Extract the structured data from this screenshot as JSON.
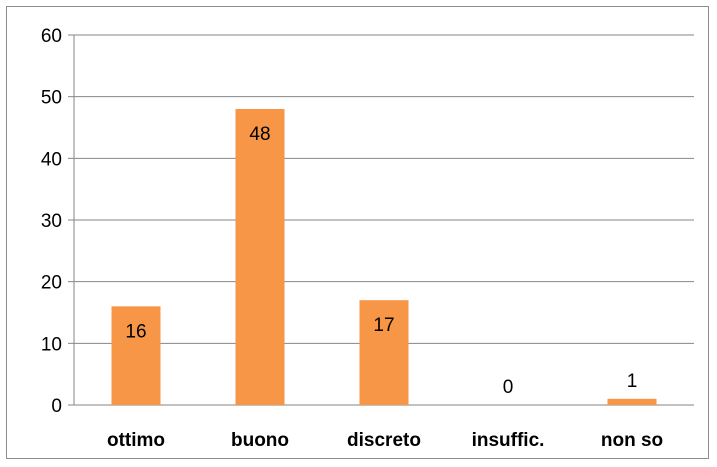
{
  "chart_data": {
    "type": "bar",
    "title": "",
    "xlabel": "",
    "ylabel": "",
    "categories": [
      "ottimo",
      "buono",
      "discreto",
      "insuffic.",
      "non so"
    ],
    "values": [
      16,
      48,
      17,
      0,
      1
    ],
    "data_labels": [
      "16",
      "48",
      "17",
      "0",
      "1"
    ],
    "y_ticks": [
      "0",
      "10",
      "20",
      "30",
      "40",
      "50",
      "60"
    ],
    "ylim": [
      0,
      60
    ],
    "grid": true,
    "legend": "none",
    "bar_color": "#F79646"
  }
}
